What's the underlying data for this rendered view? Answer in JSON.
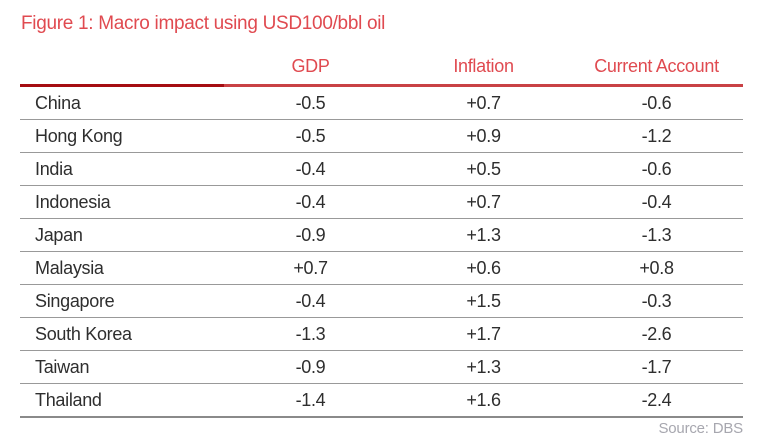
{
  "figure": {
    "title": "Figure 1: Macro impact using USD100/bbl oil",
    "source": "Source: DBS"
  },
  "colors": {
    "accent_red": "#e04a50",
    "header_rule_dark": "#a50d12",
    "header_rule_light": "#c94145",
    "body_text": "#2e2e2e",
    "row_divider": "#999999",
    "bottom_border": "#8a8a8a",
    "source_text": "#a7a7af"
  },
  "chart_data": {
    "type": "table",
    "title": "Figure 1: Macro impact using USD100/bbl oil",
    "columns": [
      "GDP",
      "Inflation",
      "Current Account"
    ],
    "rows": [
      {
        "country": "China",
        "gdp": "-0.5",
        "inflation": "+0.7",
        "current_account": "-0.6"
      },
      {
        "country": "Hong Kong",
        "gdp": "-0.5",
        "inflation": "+0.9",
        "current_account": "-1.2"
      },
      {
        "country": "India",
        "gdp": "-0.4",
        "inflation": "+0.5",
        "current_account": "-0.6"
      },
      {
        "country": "Indonesia",
        "gdp": "-0.4",
        "inflation": "+0.7",
        "current_account": "-0.4"
      },
      {
        "country": "Japan",
        "gdp": "-0.9",
        "inflation": "+1.3",
        "current_account": "-1.3"
      },
      {
        "country": "Malaysia",
        "gdp": "+0.7",
        "inflation": "+0.6",
        "current_account": "+0.8"
      },
      {
        "country": "Singapore",
        "gdp": "-0.4",
        "inflation": "+1.5",
        "current_account": "-0.3"
      },
      {
        "country": "South Korea",
        "gdp": "-1.3",
        "inflation": "+1.7",
        "current_account": "-2.6"
      },
      {
        "country": "Taiwan",
        "gdp": "-0.9",
        "inflation": "+1.3",
        "current_account": "-1.7"
      },
      {
        "country": "Thailand",
        "gdp": "-1.4",
        "inflation": "+1.6",
        "current_account": "-2.4"
      }
    ],
    "source": "Source: DBS",
    "layout": {
      "legend": "none",
      "grid": "horizontal-dividers",
      "header_rule": "two-tone-red",
      "value_alignment": "center",
      "label_alignment": "left"
    }
  }
}
